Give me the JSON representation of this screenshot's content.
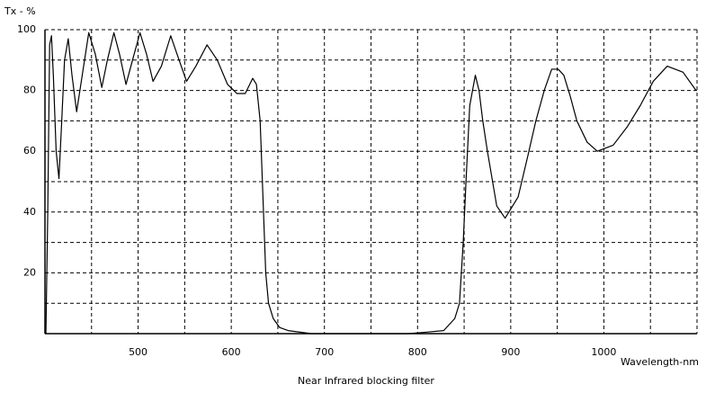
{
  "chart_data": {
    "type": "line",
    "title": "Near Infrared blocking filter",
    "y_label": "Tx - %",
    "x_label": "Wavelength-nm",
    "xlim": [
      400,
      1100
    ],
    "ylim": [
      0,
      100
    ],
    "xticks": [
      500,
      600,
      700,
      800,
      900,
      1000
    ],
    "minor_xticks": [
      450,
      550,
      650,
      750,
      850,
      950,
      1050
    ],
    "yticks": [
      20,
      40,
      60,
      80,
      100
    ],
    "minor_yticks": [
      10,
      30,
      50,
      70,
      90
    ],
    "grid": true,
    "x": [
      401,
      403,
      405,
      407,
      409,
      412,
      415,
      418,
      421,
      425,
      429,
      434,
      440,
      447,
      454,
      461,
      467,
      474,
      480,
      487,
      494,
      502,
      509,
      516,
      525,
      535,
      544,
      552,
      562,
      574,
      585,
      596,
      606,
      615,
      623,
      627,
      631,
      634,
      637,
      640,
      645,
      652,
      661,
      686,
      790,
      810,
      828,
      840,
      845,
      849,
      852,
      856,
      862,
      866,
      870,
      875,
      885,
      894,
      908,
      918,
      927,
      936,
      944,
      951,
      957,
      964,
      971,
      982,
      993,
      1010,
      1025,
      1039,
      1053,
      1068,
      1085,
      1099
    ],
    "series": [
      {
        "color": "#000000",
        "values": [
          0,
          40,
          95,
          98,
          85,
          60,
          51,
          70,
          90,
          97,
          85,
          73,
          85,
          99,
          92,
          81,
          90,
          99,
          92,
          82,
          90,
          99,
          92,
          83,
          88,
          98,
          90,
          83,
          88,
          95,
          90,
          82,
          79,
          79,
          84,
          82,
          70,
          45,
          20,
          10,
          5,
          2,
          1,
          0,
          0,
          0.5,
          1,
          5,
          10,
          30,
          50,
          75,
          85,
          80,
          70,
          60,
          42,
          38,
          45,
          58,
          70,
          80,
          87,
          87,
          85,
          78,
          70,
          63,
          60,
          62,
          68,
          75,
          83,
          88,
          86,
          80
        ]
      }
    ]
  }
}
